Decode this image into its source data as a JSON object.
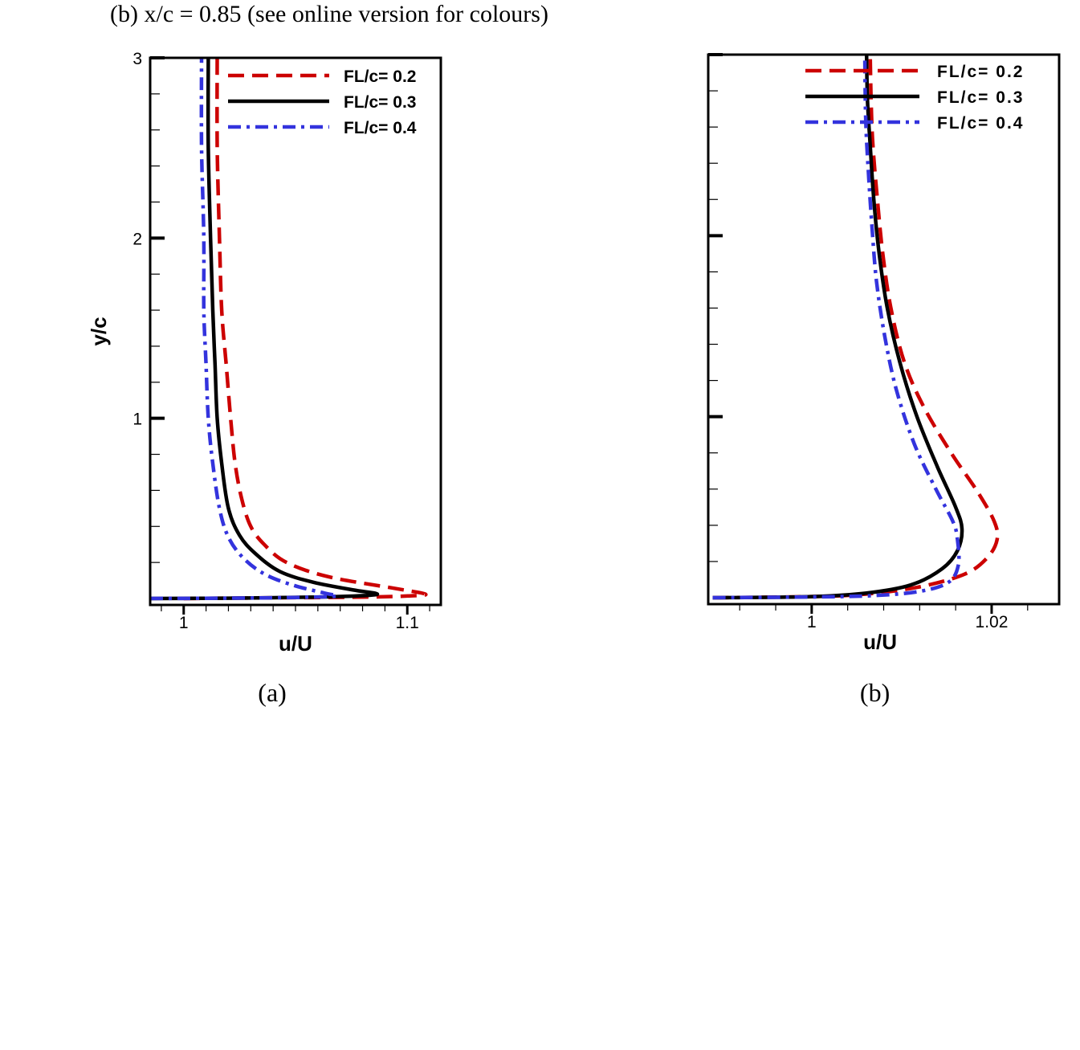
{
  "figure_caption": "(b) x/c = 0.85 (see online version for colours)",
  "colors": {
    "fl02": "#cc0000",
    "fl03": "#000000",
    "fl04": "#3333dd"
  },
  "chart_data": [
    {
      "type": "line",
      "panel_label": "(a)",
      "xlabel": "u/U",
      "ylabel": "y/c",
      "xlim": [
        0.985,
        1.115
      ],
      "ylim": [
        0.0,
        3.0
      ],
      "x_ticks": [
        1.0,
        1.1
      ],
      "x_tick_labels": [
        "1",
        "1.1"
      ],
      "y_ticks": [
        1,
        2,
        3
      ],
      "y_tick_labels": [
        "1",
        "2",
        "3"
      ],
      "legend_position": "top-right",
      "grid": false,
      "series": [
        {
          "name": "FL/c= 0.2",
          "style": "dashed",
          "points": [
            [
              1.0,
              0.0
            ],
            [
              1.03,
              0.003
            ],
            [
              1.08,
              0.008
            ],
            [
              1.102,
              0.015
            ],
            [
              1.108,
              0.025
            ],
            [
              1.095,
              0.055
            ],
            [
              1.065,
              0.12
            ],
            [
              1.046,
              0.2
            ],
            [
              1.036,
              0.3
            ],
            [
              1.03,
              0.4
            ],
            [
              1.026,
              0.55
            ],
            [
              1.023,
              0.75
            ],
            [
              1.021,
              1.0
            ],
            [
              1.019,
              1.3
            ],
            [
              1.017,
              1.6
            ],
            [
              1.016,
              2.0
            ],
            [
              1.015,
              2.5
            ],
            [
              1.015,
              3.0
            ]
          ]
        },
        {
          "name": "FL/c= 0.3",
          "style": "solid",
          "points": [
            [
              0.985,
              0.0
            ],
            [
              1.02,
              0.002
            ],
            [
              1.06,
              0.008
            ],
            [
              1.083,
              0.018
            ],
            [
              1.086,
              0.028
            ],
            [
              1.077,
              0.045
            ],
            [
              1.058,
              0.09
            ],
            [
              1.043,
              0.15
            ],
            [
              1.032,
              0.25
            ],
            [
              1.025,
              0.35
            ],
            [
              1.02,
              0.5
            ],
            [
              1.017,
              0.75
            ],
            [
              1.015,
              1.0
            ],
            [
              1.014,
              1.3
            ],
            [
              1.013,
              1.6
            ],
            [
              1.012,
              2.0
            ],
            [
              1.011,
              2.5
            ],
            [
              1.011,
              3.0
            ]
          ]
        },
        {
          "name": "FL/c= 0.4",
          "style": "dashdot",
          "points": [
            [
              0.985,
              0.0
            ],
            [
              1.02,
              0.002
            ],
            [
              1.05,
              0.006
            ],
            [
              1.068,
              0.013
            ],
            [
              1.063,
              0.03
            ],
            [
              1.05,
              0.07
            ],
            [
              1.037,
              0.13
            ],
            [
              1.027,
              0.22
            ],
            [
              1.02,
              0.34
            ],
            [
              1.016,
              0.5
            ],
            [
              1.013,
              0.75
            ],
            [
              1.011,
              1.0
            ],
            [
              1.01,
              1.3
            ],
            [
              1.009,
              1.6
            ],
            [
              1.009,
              2.0
            ],
            [
              1.008,
              2.5
            ],
            [
              1.008,
              3.0
            ]
          ]
        }
      ]
    },
    {
      "type": "line",
      "panel_label": "(b)",
      "xlabel": "u/U",
      "ylabel": "",
      "xlim": [
        0.9885,
        1.0275
      ],
      "ylim": [
        0.0,
        3.0
      ],
      "x_ticks": [
        1.0,
        1.02
      ],
      "x_tick_labels": [
        "1",
        "1.02"
      ],
      "y_ticks": [],
      "y_tick_labels": [],
      "legend_position": "top-right",
      "grid": false,
      "series": [
        {
          "name": "FL/c= 0.2",
          "style": "dashed",
          "points": [
            [
              0.989,
              0.0
            ],
            [
              1.0,
              0.006
            ],
            [
              1.006,
              0.02
            ],
            [
              1.012,
              0.06
            ],
            [
              1.017,
              0.13
            ],
            [
              1.0195,
              0.22
            ],
            [
              1.0206,
              0.32
            ],
            [
              1.0203,
              0.42
            ],
            [
              1.0185,
              0.58
            ],
            [
              1.0155,
              0.8
            ],
            [
              1.0125,
              1.05
            ],
            [
              1.0103,
              1.3
            ],
            [
              1.0088,
              1.6
            ],
            [
              1.0079,
              1.9
            ],
            [
              1.0073,
              2.2
            ],
            [
              1.0068,
              2.5
            ],
            [
              1.0066,
              2.75
            ],
            [
              1.0065,
              3.0
            ]
          ]
        },
        {
          "name": "FL/c= 0.3",
          "style": "solid",
          "points": [
            [
              0.989,
              0.0
            ],
            [
              1.0,
              0.006
            ],
            [
              1.006,
              0.025
            ],
            [
              1.011,
              0.07
            ],
            [
              1.0145,
              0.16
            ],
            [
              1.0162,
              0.26
            ],
            [
              1.0167,
              0.38
            ],
            [
              1.016,
              0.5
            ],
            [
              1.014,
              0.72
            ],
            [
              1.0117,
              1.0
            ],
            [
              1.0098,
              1.3
            ],
            [
              1.0084,
              1.6
            ],
            [
              1.0075,
              1.9
            ],
            [
              1.0069,
              2.2
            ],
            [
              1.0065,
              2.5
            ],
            [
              1.0062,
              2.75
            ],
            [
              1.0061,
              3.0
            ]
          ]
        },
        {
          "name": "FL/c= 0.4",
          "style": "dashdot",
          "points": [
            [
              0.989,
              0.0
            ],
            [
              1.0,
              0.004
            ],
            [
              1.007,
              0.012
            ],
            [
              1.012,
              0.035
            ],
            [
              1.0152,
              0.085
            ],
            [
              1.0163,
              0.18
            ],
            [
              1.0162,
              0.32
            ],
            [
              1.0157,
              0.42
            ],
            [
              1.0138,
              0.6
            ],
            [
              1.0114,
              0.85
            ],
            [
              1.0094,
              1.15
            ],
            [
              1.0081,
              1.45
            ],
            [
              1.0072,
              1.75
            ],
            [
              1.0067,
              2.05
            ],
            [
              1.0063,
              2.35
            ],
            [
              1.006,
              2.65
            ],
            [
              1.0059,
              3.0
            ]
          ]
        }
      ]
    }
  ]
}
